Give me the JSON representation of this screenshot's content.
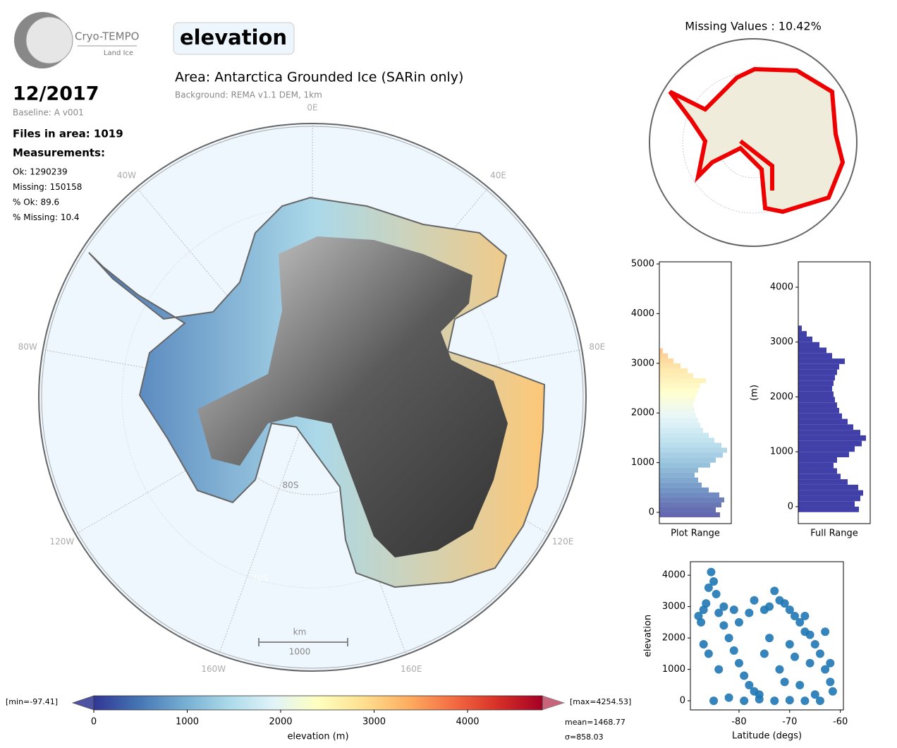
{
  "header": {
    "logo_title": "Cryo-TEMPO",
    "logo_subtitle": "Land Ice",
    "parameter": "elevation",
    "date": "12/2017",
    "baseline": "Baseline: A v001",
    "files": "Files in area: 1019",
    "measurements_title": "Measurements:",
    "stats": [
      "Ok: 1290239",
      "Missing: 150158",
      "% Ok: 89.6",
      "% Missing: 10.4"
    ]
  },
  "map": {
    "title": "Area: Antarctica Grounded Ice (SARin only)",
    "background": "Background: REMA v1.1 DEM, 1km",
    "lon_labels": [
      "0E",
      "40E",
      "80E",
      "120E",
      "160E",
      "160W",
      "120W",
      "80W",
      "40W"
    ],
    "lat_labels": [
      "80S",
      "70S"
    ],
    "scale_unit": "km",
    "scale_length": "1000"
  },
  "missing_map": {
    "title": "Missing Values : 10.42%"
  },
  "colorbar": {
    "xlabel": "elevation (m)",
    "xlim": [
      0,
      4800
    ],
    "xticks": [
      0,
      1000,
      2000,
      3000,
      4000
    ],
    "colors": [
      "#313695",
      "#4575b4",
      "#74add1",
      "#abd9e9",
      "#e0f3f8",
      "#ffffbf",
      "#fee090",
      "#fdae61",
      "#f46d43",
      "#d73027",
      "#a50026"
    ],
    "min_label": "[min=-97.41]",
    "max_label": "[max=4254.53]",
    "mean_label": "mean=1468.77",
    "std_label": "σ=858.03"
  },
  "chart_data": [
    {
      "type": "histogram",
      "xlabel": "Plot Range",
      "bins": [
        -100,
        0,
        100,
        200,
        300,
        400,
        500,
        600,
        700,
        800,
        900,
        1000,
        1100,
        1200,
        1300,
        1400,
        1500,
        1600,
        1700,
        1800,
        1900,
        2000,
        2100,
        2200,
        2300,
        2400,
        2500,
        2600,
        2700,
        2800,
        2900,
        3000,
        3100,
        3200,
        3300
      ],
      "counts": [
        86,
        80,
        88,
        92,
        85,
        70,
        60,
        55,
        50,
        55,
        72,
        80,
        90,
        96,
        88,
        78,
        70,
        62,
        58,
        55,
        52,
        50,
        48,
        50,
        52,
        55,
        58,
        66,
        48,
        40,
        30,
        20,
        12,
        5
      ],
      "xlim": [
        0,
        102
      ],
      "ylim": [
        -227,
        5043
      ],
      "yticks": [
        0,
        1000,
        2000,
        3000,
        4000,
        5000
      ]
    },
    {
      "type": "histogram",
      "xlabel": "Full Range",
      "ylabel": "(m)",
      "color": "#4040a8",
      "bins": [
        -100,
        0,
        100,
        200,
        300,
        400,
        500,
        600,
        700,
        800,
        900,
        1000,
        1100,
        1200,
        1300,
        1400,
        1500,
        1600,
        1700,
        1800,
        1900,
        2000,
        2100,
        2200,
        2300,
        2400,
        2500,
        2600,
        2700,
        2800,
        2900,
        3000,
        3100,
        3200,
        3300
      ],
      "counts": [
        86,
        80,
        88,
        92,
        85,
        70,
        60,
        55,
        50,
        55,
        72,
        80,
        90,
        96,
        88,
        78,
        70,
        62,
        58,
        55,
        52,
        50,
        48,
        50,
        52,
        55,
        58,
        66,
        48,
        40,
        30,
        20,
        12,
        5
      ],
      "xlim": [
        0,
        102
      ],
      "ylim": [
        -309,
        4463
      ],
      "yticks": [
        0,
        1000,
        2000,
        3000,
        4000
      ]
    },
    {
      "type": "scatter",
      "xlabel": "Latitude (degs)",
      "ylabel": "elevation",
      "color": "#1f77b4",
      "x": [
        -88,
        -87.5,
        -87,
        -86.5,
        -86,
        -85.5,
        -85,
        -84.5,
        -84,
        -83,
        -82,
        -81,
        -80,
        -79,
        -78,
        -77,
        -76,
        -75,
        -74,
        -73,
        -72,
        -71,
        -70,
        -69,
        -68,
        -67,
        -66,
        -65,
        -64,
        -63,
        -62,
        -61.5,
        -85,
        -82,
        -79,
        -76,
        -73,
        -70,
        -67,
        -64,
        -86,
        -84,
        -80,
        -78,
        -77,
        -75,
        -72,
        -70,
        -68,
        -66,
        -65,
        -63,
        -87,
        -83,
        -81,
        -74,
        -71,
        -69,
        -67,
        -62
      ],
      "values": [
        2700,
        2500,
        2900,
        3100,
        3600,
        4100,
        3800,
        3400,
        2800,
        2400,
        2000,
        1600,
        1200,
        800,
        500,
        300,
        200,
        2900,
        3000,
        3500,
        3200,
        3100,
        2900,
        2700,
        2500,
        2200,
        2100,
        1800,
        1500,
        1000,
        600,
        300,
        0,
        100,
        0,
        50,
        0,
        20,
        0,
        0,
        1500,
        1000,
        2500,
        2800,
        3200,
        1500,
        1000,
        1800,
        500,
        1200,
        200,
        2200,
        1800,
        3000,
        2900,
        2000,
        600,
        1400,
        2700,
        1200
      ],
      "xlim": [
        -89.6,
        -59.4
      ],
      "ylim": [
        -290,
        4430
      ],
      "xticks": [
        -80,
        -70,
        -60
      ],
      "yticks": [
        0,
        1000,
        2000,
        3000,
        4000
      ]
    }
  ]
}
